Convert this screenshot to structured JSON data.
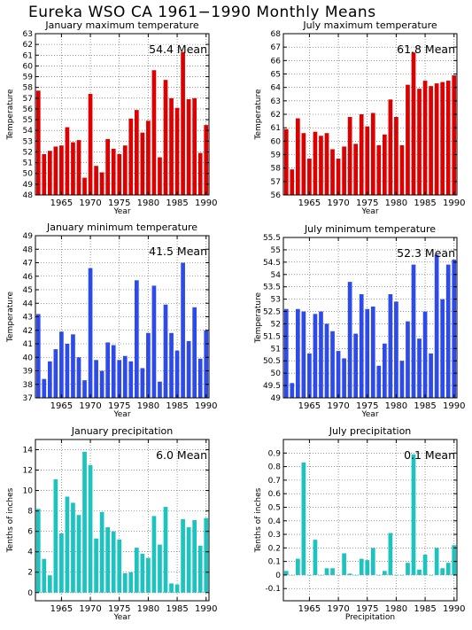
{
  "page": {
    "title": "Eureka WSO CA  1961−1990 Monthly Means"
  },
  "colors": {
    "red": "#dd0000",
    "blue": "#2e4bea",
    "teal": "#1cc3bf",
    "axis": "#000000",
    "grid": "#000000"
  },
  "chart_data": [
    {
      "type": "bar",
      "title": "January maximum temperature",
      "mean_label": "54.4 Mean",
      "ylabel": "Temperature",
      "xlabel": "Year",
      "color": "red",
      "grid": true,
      "xlim": [
        1961,
        1990
      ],
      "ylim": [
        48,
        63
      ],
      "yticks": [
        48,
        49,
        50,
        51,
        52,
        53,
        54,
        55,
        56,
        57,
        58,
        59,
        60,
        61,
        62,
        63
      ],
      "xticks": [
        1965,
        1970,
        1975,
        1980,
        1985,
        1990
      ],
      "x": [
        1961,
        1962,
        1963,
        1964,
        1965,
        1966,
        1967,
        1968,
        1969,
        1970,
        1971,
        1972,
        1973,
        1974,
        1975,
        1976,
        1977,
        1978,
        1979,
        1980,
        1981,
        1982,
        1983,
        1984,
        1985,
        1986,
        1987,
        1988,
        1989,
        1990
      ],
      "values": [
        57.7,
        51.8,
        52.1,
        52.5,
        52.6,
        54.3,
        52.9,
        53.1,
        49.6,
        57.4,
        50.7,
        50.1,
        53.2,
        52.3,
        51.8,
        52.6,
        55.1,
        55.9,
        53.8,
        54.9,
        59.6,
        51.5,
        58.7,
        57.0,
        56.1,
        61.3,
        56.9,
        57.0,
        51.9,
        54.5
      ]
    },
    {
      "type": "bar",
      "title": "July maximum temperature",
      "mean_label": "61.8 Mean",
      "ylabel": "Temperature",
      "xlabel": "Year",
      "color": "red",
      "grid": true,
      "xlim": [
        1961,
        1990
      ],
      "ylim": [
        56,
        68
      ],
      "yticks": [
        56,
        57,
        58,
        59,
        60,
        61,
        62,
        63,
        64,
        65,
        66,
        67,
        68
      ],
      "xticks": [
        1965,
        1970,
        1975,
        1980,
        1985,
        1990
      ],
      "x": [
        1961,
        1962,
        1963,
        1964,
        1965,
        1966,
        1967,
        1968,
        1969,
        1970,
        1971,
        1972,
        1973,
        1974,
        1975,
        1976,
        1977,
        1978,
        1979,
        1980,
        1981,
        1982,
        1983,
        1984,
        1985,
        1986,
        1987,
        1988,
        1989,
        1990
      ],
      "values": [
        60.9,
        57.9,
        61.7,
        60.6,
        58.7,
        60.7,
        60.4,
        60.6,
        59.4,
        58.7,
        59.6,
        61.8,
        59.8,
        62.0,
        61.1,
        62.1,
        59.7,
        60.5,
        63.1,
        61.8,
        59.7,
        64.2,
        66.6,
        63.9,
        64.5,
        64.1,
        64.3,
        64.4,
        64.5,
        64.9
      ]
    },
    {
      "type": "bar",
      "title": "January minimum temperature",
      "mean_label": "41.5 Mean",
      "ylabel": "Temperature",
      "xlabel": "Year",
      "color": "blue",
      "grid": true,
      "xlim": [
        1961,
        1990
      ],
      "ylim": [
        37,
        49
      ],
      "yticks": [
        37,
        38,
        39,
        40,
        41,
        42,
        43,
        44,
        45,
        46,
        47,
        48,
        49
      ],
      "xticks": [
        1965,
        1970,
        1975,
        1980,
        1985,
        1990
      ],
      "x": [
        1961,
        1962,
        1963,
        1964,
        1965,
        1966,
        1967,
        1968,
        1969,
        1970,
        1971,
        1972,
        1973,
        1974,
        1975,
        1976,
        1977,
        1978,
        1979,
        1980,
        1981,
        1982,
        1983,
        1984,
        1985,
        1986,
        1987,
        1988,
        1989,
        1990
      ],
      "values": [
        43.2,
        38.4,
        39.7,
        40.6,
        41.9,
        41.0,
        41.7,
        40.0,
        38.3,
        46.6,
        39.8,
        39.0,
        41.1,
        40.9,
        39.8,
        40.1,
        39.7,
        45.7,
        39.2,
        41.8,
        45.3,
        38.2,
        43.9,
        41.8,
        40.5,
        47.0,
        41.2,
        43.7,
        39.9,
        42.0
      ]
    },
    {
      "type": "bar",
      "title": "July minimum temperature",
      "mean_label": "52.3 Mean",
      "ylabel": "Temperature",
      "xlabel": "Year",
      "color": "blue",
      "grid": true,
      "xlim": [
        1961,
        1990
      ],
      "ylim": [
        49,
        55.5
      ],
      "yticks": [
        49,
        49.5,
        50,
        50.5,
        51,
        51.5,
        52,
        52.5,
        53,
        53.5,
        54,
        54.5,
        55,
        55.5
      ],
      "xticks": [
        1965,
        1970,
        1975,
        1980,
        1985,
        1990
      ],
      "x": [
        1961,
        1962,
        1963,
        1964,
        1965,
        1966,
        1967,
        1968,
        1969,
        1970,
        1971,
        1972,
        1973,
        1974,
        1975,
        1976,
        1977,
        1978,
        1979,
        1980,
        1981,
        1982,
        1983,
        1984,
        1985,
        1986,
        1987,
        1988,
        1989,
        1990
      ],
      "values": [
        52.6,
        49.6,
        52.6,
        52.5,
        50.8,
        52.4,
        52.5,
        52.0,
        51.7,
        50.9,
        50.6,
        53.7,
        51.6,
        53.2,
        52.6,
        52.7,
        50.3,
        51.2,
        53.2,
        52.9,
        50.5,
        52.1,
        54.4,
        51.4,
        52.5,
        50.8,
        54.8,
        53.0,
        54.4,
        54.6
      ]
    },
    {
      "type": "bar",
      "title": "January precipitation",
      "mean_label": "6.0 Mean",
      "ylabel": "Tenths of inches",
      "xlabel": "Year",
      "color": "teal",
      "grid": true,
      "xlim": [
        1961,
        1990
      ],
      "ylim": [
        -0.8,
        15
      ],
      "yticks": [
        0,
        2,
        4,
        6,
        8,
        10,
        12,
        14
      ],
      "xticks": [
        1965,
        1970,
        1975,
        1980,
        1985,
        1990
      ],
      "x": [
        1961,
        1962,
        1963,
        1964,
        1965,
        1966,
        1967,
        1968,
        1969,
        1970,
        1971,
        1972,
        1973,
        1974,
        1975,
        1976,
        1977,
        1978,
        1979,
        1980,
        1981,
        1982,
        1983,
        1984,
        1985,
        1986,
        1987,
        1988,
        1989,
        1990
      ],
      "values": [
        8.2,
        3.3,
        1.7,
        11.1,
        5.8,
        9.4,
        8.8,
        7.6,
        13.8,
        12.5,
        5.3,
        7.9,
        6.4,
        6.0,
        5.2,
        1.9,
        2.0,
        4.4,
        3.8,
        3.4,
        7.5,
        4.7,
        8.4,
        0.9,
        0.8,
        7.2,
        6.4,
        7.1,
        4.6,
        7.3
      ]
    },
    {
      "type": "bar",
      "title": "July precipitation",
      "mean_label": "0.1 Mean",
      "ylabel": "Tenths of inches",
      "xlabel": "Precipitation",
      "color": "teal",
      "grid": true,
      "xlim": [
        1961,
        1990
      ],
      "ylim": [
        -0.19,
        1.0
      ],
      "yticks": [
        -0.1,
        0,
        0.1,
        0.2,
        0.3,
        0.4,
        0.5,
        0.6,
        0.7,
        0.8,
        0.9
      ],
      "xticks": [
        1965,
        1970,
        1975,
        1980,
        1985,
        1990
      ],
      "x": [
        1961,
        1962,
        1963,
        1964,
        1965,
        1966,
        1967,
        1968,
        1969,
        1970,
        1971,
        1972,
        1973,
        1974,
        1975,
        1976,
        1977,
        1978,
        1979,
        1980,
        1981,
        1982,
        1983,
        1984,
        1985,
        1986,
        1987,
        1988,
        1989,
        1990
      ],
      "values": [
        0.03,
        0.0,
        0.12,
        0.83,
        0.0,
        0.26,
        0.0,
        0.05,
        0.05,
        0.0,
        0.16,
        0.01,
        0.0,
        0.12,
        0.11,
        0.2,
        0.0,
        0.03,
        0.31,
        0.0,
        0.0,
        0.09,
        0.89,
        0.04,
        0.15,
        0.0,
        0.2,
        0.05,
        0.09,
        0.22
      ]
    }
  ]
}
